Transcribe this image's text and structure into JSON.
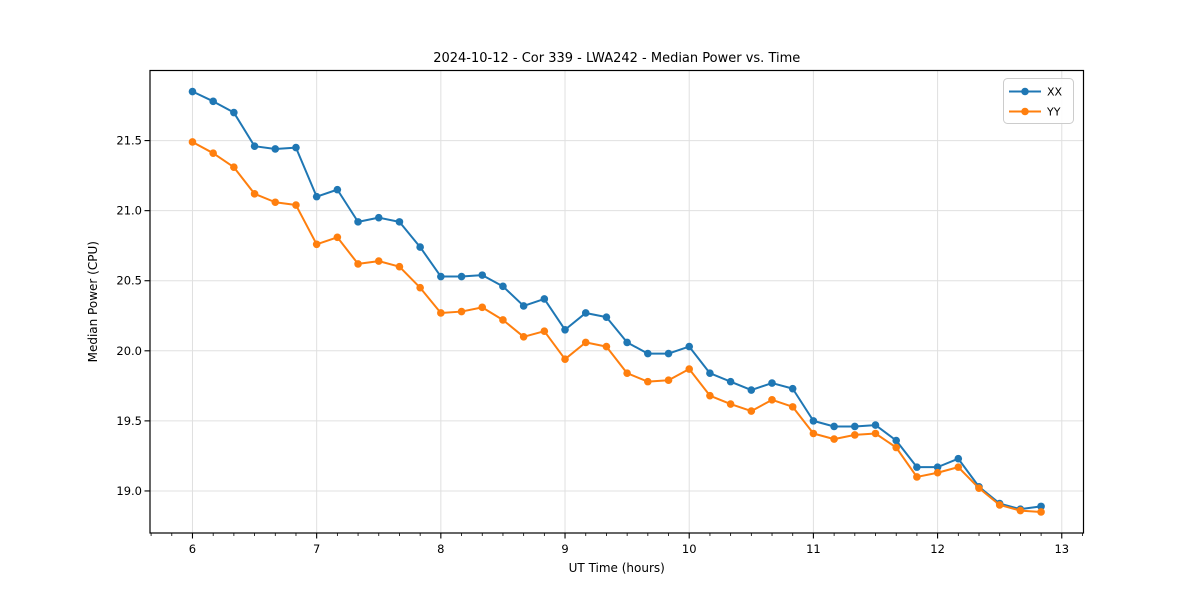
{
  "chart_data": {
    "type": "line",
    "title": "2024-10-12 - Cor 339 - LWA242 - Median Power vs. Time",
    "xlabel": "UT Time (hours)",
    "ylabel": "Median Power (CPU)",
    "xlim": [
      5.658,
      13.175
    ],
    "ylim": [
      18.7,
      22.0
    ],
    "x_major_ticks": [
      6,
      7,
      8,
      9,
      10,
      11,
      12,
      13
    ],
    "x_minor_step": 0.16667,
    "y_major_ticks": [
      19.0,
      19.5,
      20.0,
      20.5,
      21.0,
      21.5
    ],
    "grid": true,
    "legend_position": "upper right",
    "x": [
      6.0,
      6.1667,
      6.3333,
      6.5,
      6.6667,
      6.8333,
      7.0,
      7.1667,
      7.3333,
      7.5,
      7.6667,
      7.8333,
      8.0,
      8.1667,
      8.3333,
      8.5,
      8.6667,
      8.8333,
      9.0,
      9.1667,
      9.3333,
      9.5,
      9.6667,
      9.8333,
      10.0,
      10.1667,
      10.3333,
      10.5,
      10.6667,
      10.8333,
      11.0,
      11.1667,
      11.3333,
      11.5,
      11.6667,
      11.8333,
      12.0,
      12.1667,
      12.3333,
      12.5,
      12.6667,
      12.8333
    ],
    "series": [
      {
        "name": "XX",
        "color": "#1f77b4",
        "values": [
          21.85,
          21.78,
          21.7,
          21.46,
          21.44,
          21.45,
          21.1,
          21.15,
          20.92,
          20.95,
          20.92,
          20.74,
          20.53,
          20.53,
          20.54,
          20.46,
          20.32,
          20.37,
          20.15,
          20.27,
          20.24,
          20.06,
          19.98,
          19.98,
          20.03,
          19.84,
          19.78,
          19.72,
          19.77,
          19.73,
          19.5,
          19.46,
          19.46,
          19.47,
          19.36,
          19.17,
          19.17,
          19.23,
          19.03,
          18.91,
          18.87,
          18.89
        ]
      },
      {
        "name": "YY",
        "color": "#ff7f0e",
        "values": [
          21.49,
          21.41,
          21.31,
          21.12,
          21.06,
          21.04,
          20.76,
          20.81,
          20.62,
          20.64,
          20.6,
          20.45,
          20.27,
          20.28,
          20.31,
          20.22,
          20.1,
          20.14,
          19.94,
          20.06,
          20.03,
          19.84,
          19.78,
          19.79,
          19.87,
          19.68,
          19.62,
          19.57,
          19.65,
          19.6,
          19.41,
          19.37,
          19.4,
          19.41,
          19.31,
          19.1,
          19.13,
          19.17,
          19.02,
          18.9,
          18.86,
          18.85
        ]
      }
    ]
  }
}
